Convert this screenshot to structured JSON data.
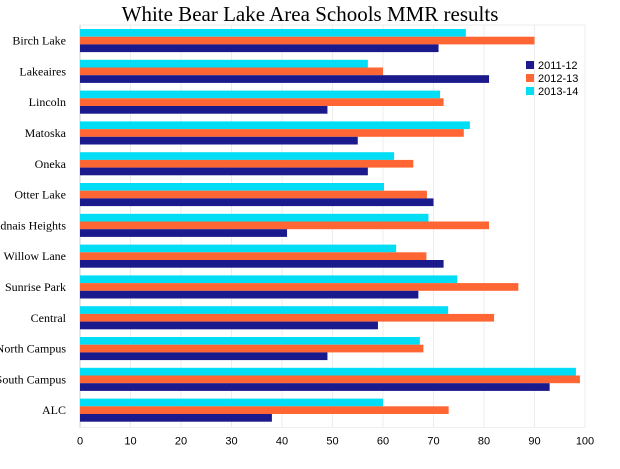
{
  "chart_data": {
    "type": "bar",
    "orientation": "horizontal",
    "title": "White Bear Lake Area Schools MMR results",
    "categories": [
      "Birch Lake",
      "Lakeaires",
      "Lincoln",
      "Matoska",
      "Oneka",
      "Otter Lake",
      "Vadnais Heights",
      "Willow Lane",
      "Sunrise Park",
      "Central",
      "North Campus",
      "South Campus",
      "ALC"
    ],
    "series": [
      {
        "name": "2011-12",
        "color": "#1a1a8c",
        "values": [
          71,
          81,
          49,
          55,
          57,
          70,
          41,
          72,
          67,
          59,
          49,
          93,
          38
        ]
      },
      {
        "name": "2012-13",
        "color": "#ff6633",
        "values": [
          90,
          60,
          72,
          76,
          66,
          68.7,
          81,
          68.6,
          86.8,
          82,
          68,
          99,
          73
        ]
      },
      {
        "name": "2013-14",
        "color": "#00ddf5",
        "values": [
          76.4,
          57,
          71.3,
          77.2,
          62.2,
          60.2,
          69,
          62.6,
          74.7,
          72.9,
          67.3,
          98.2,
          60
        ]
      }
    ],
    "xlim": [
      0,
      100
    ],
    "xticks": [
      "0",
      "10",
      "20",
      "30",
      "40",
      "50",
      "60",
      "70",
      "80",
      "90",
      "100"
    ],
    "grid": true,
    "legend_position": "right"
  }
}
